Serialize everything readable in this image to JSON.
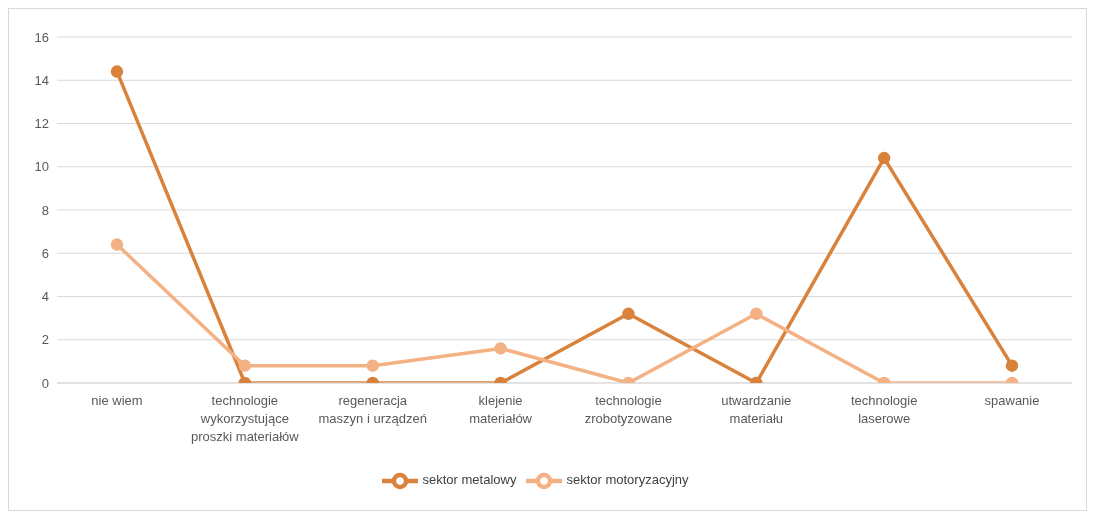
{
  "chart_data": {
    "type": "line",
    "categories": [
      "nie wiem",
      "technologie\nwykorzystujące\nproszki materiałów",
      "regeneracja\nmaszyn i urządzeń",
      "klejenie\nmateriałów",
      "technologie\nzrobotyzowane",
      "utwardzanie\nmateriału",
      "technologie\nlaserowe",
      "spawanie"
    ],
    "series": [
      {
        "name": "sektor metalowy",
        "color": "#d9823b",
        "values": [
          14.4,
          0,
          0,
          0,
          3.2,
          0,
          10.4,
          0.8
        ]
      },
      {
        "name": "sektor motoryzacyjny",
        "color": "#f4b183",
        "values": [
          6.4,
          0.8,
          0.8,
          1.6,
          0,
          3.2,
          0,
          0
        ]
      }
    ],
    "ylim": [
      0,
      16
    ],
    "yticks": [
      0,
      2,
      4,
      6,
      8,
      10,
      12,
      14,
      16
    ],
    "grid": "y",
    "legend": "bottom",
    "marker": "circle",
    "line_style": "solid"
  }
}
